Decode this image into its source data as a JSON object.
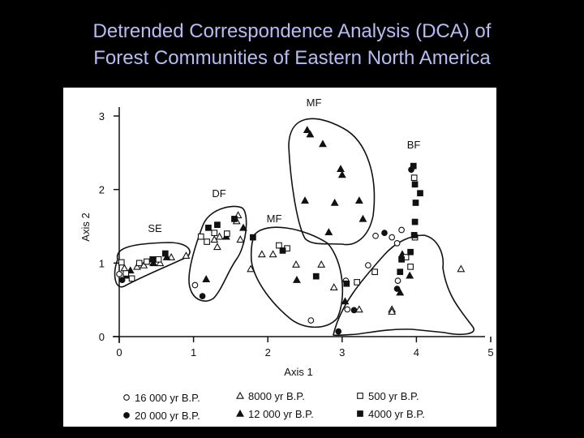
{
  "slide": {
    "title_line1": "Detrended Correspondence Analysis (DCA) of",
    "title_line2": "Forest Communities of Eastern North America"
  },
  "chart_data": {
    "type": "scatter",
    "xlabel": "Axis 1",
    "ylabel": "Axis 2",
    "xlim": [
      0,
      5
    ],
    "ylim": [
      0,
      3
    ],
    "xticks": [
      "0",
      "1",
      "2",
      "3",
      "4",
      "5"
    ],
    "yticks": [
      "0",
      "1",
      "2",
      "3"
    ],
    "grid": false,
    "legend_position": "bottom",
    "series": [
      {
        "name": "16 000 yr B.P.",
        "marker": "open-circle",
        "color": "#111111",
        "points": [
          [
            0.0,
            0.85
          ],
          [
            1.02,
            0.7
          ],
          [
            2.58,
            0.22
          ],
          [
            3.07,
            0.37
          ],
          [
            3.35,
            0.97
          ],
          [
            3.45,
            1.37
          ],
          [
            3.67,
            1.35
          ],
          [
            3.8,
            1.45
          ],
          [
            3.75,
            0.76
          ],
          [
            3.05,
            0.76
          ],
          [
            3.74,
            1.27
          ]
        ]
      },
      {
        "name": "20 000 yr B.P.",
        "marker": "filled-circle",
        "color": "#111111",
        "points": [
          [
            0.04,
            0.77
          ],
          [
            1.12,
            0.55
          ],
          [
            2.95,
            0.07
          ],
          [
            3.57,
            1.41
          ],
          [
            3.93,
            2.27
          ],
          [
            3.16,
            0.36
          ],
          [
            3.74,
            0.65
          ]
        ]
      },
      {
        "name": "8000 yr B.P.",
        "marker": "open-triangle",
        "color": "#111111",
        "points": [
          [
            0.07,
            0.93
          ],
          [
            0.24,
            0.95
          ],
          [
            0.33,
            0.97
          ],
          [
            0.42,
            1.02
          ],
          [
            0.55,
            1.0
          ],
          [
            0.7,
            1.08
          ],
          [
            0.9,
            1.1
          ],
          [
            1.32,
            1.22
          ],
          [
            1.35,
            1.36
          ],
          [
            1.58,
            1.57
          ],
          [
            1.6,
            1.65
          ],
          [
            1.63,
            1.32
          ],
          [
            1.92,
            1.12
          ],
          [
            2.38,
            0.98
          ],
          [
            2.72,
            0.98
          ],
          [
            2.89,
            0.67
          ],
          [
            3.23,
            0.37
          ],
          [
            3.67,
            0.37
          ],
          [
            3.67,
            0.34
          ],
          [
            4.6,
            0.92
          ],
          [
            2.07,
            1.12
          ],
          [
            1.77,
            0.92
          ],
          [
            1.28,
            1.32
          ]
        ]
      },
      {
        "name": "12 000 yr B.P.",
        "marker": "filled-triangle",
        "color": "#111111",
        "points": [
          [
            0.1,
            0.83
          ],
          [
            0.15,
            0.9
          ],
          [
            0.46,
            1.0
          ],
          [
            0.64,
            1.08
          ],
          [
            1.17,
            0.78
          ],
          [
            1.44,
            1.36
          ],
          [
            1.67,
            1.48
          ],
          [
            2.39,
            0.77
          ],
          [
            2.53,
            2.81
          ],
          [
            2.57,
            2.75
          ],
          [
            2.74,
            2.62
          ],
          [
            2.98,
            2.28
          ],
          [
            3.0,
            2.2
          ],
          [
            2.5,
            1.85
          ],
          [
            2.9,
            1.82
          ],
          [
            3.23,
            1.85
          ],
          [
            3.28,
            1.6
          ],
          [
            2.82,
            1.42
          ],
          [
            3.04,
            0.48
          ],
          [
            3.78,
            0.6
          ],
          [
            3.91,
            0.83
          ],
          [
            3.81,
            1.12
          ]
        ]
      },
      {
        "name": "500 yr B.P.",
        "marker": "open-square",
        "color": "#111111",
        "points": [
          [
            0.03,
            1.01
          ],
          [
            0.09,
            0.86
          ],
          [
            0.17,
            0.79
          ],
          [
            0.27,
            1.0
          ],
          [
            0.37,
            1.02
          ],
          [
            0.53,
            1.05
          ],
          [
            1.1,
            1.36
          ],
          [
            1.28,
            1.41
          ],
          [
            1.18,
            1.29
          ],
          [
            1.45,
            1.4
          ],
          [
            2.15,
            1.24
          ],
          [
            2.26,
            1.2
          ],
          [
            3.2,
            0.74
          ],
          [
            3.97,
            2.16
          ],
          [
            3.98,
            1.35
          ],
          [
            3.92,
            0.95
          ],
          [
            3.86,
            1.08
          ],
          [
            3.44,
            0.88
          ]
        ]
      },
      {
        "name": "4000 yr B.P.",
        "marker": "filled-square",
        "color": "#111111",
        "points": [
          [
            0.45,
            1.05
          ],
          [
            0.62,
            1.13
          ],
          [
            1.2,
            1.48
          ],
          [
            1.32,
            1.52
          ],
          [
            1.55,
            1.6
          ],
          [
            1.8,
            1.35
          ],
          [
            2.2,
            1.17
          ],
          [
            2.65,
            0.82
          ],
          [
            3.06,
            0.72
          ],
          [
            3.96,
            2.32
          ],
          [
            3.98,
            2.07
          ],
          [
            4.05,
            1.95
          ],
          [
            3.99,
            1.82
          ],
          [
            3.98,
            1.56
          ],
          [
            3.97,
            1.38
          ],
          [
            3.92,
            1.15
          ],
          [
            3.8,
            1.05
          ],
          [
            3.78,
            0.88
          ]
        ]
      }
    ],
    "annotations": [
      "MF",
      "BF",
      "DF",
      "MF",
      "SE"
    ]
  }
}
